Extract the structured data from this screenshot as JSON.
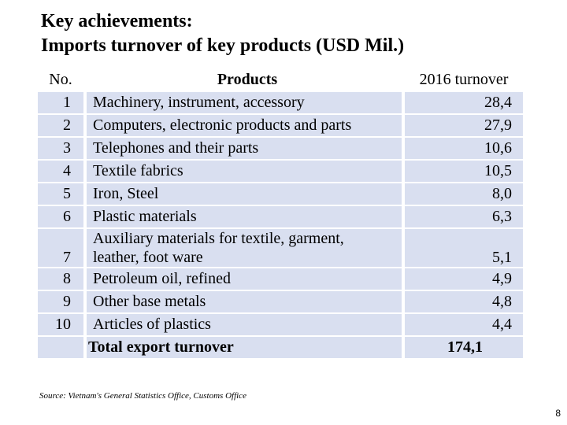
{
  "title": {
    "line1": "Key achievements:",
    "line2": "Imports turnover of key products (USD Mil.)"
  },
  "table": {
    "headers": {
      "no": "No.",
      "product": "Products",
      "value": "2016 turnover"
    },
    "rows": [
      {
        "no": "1",
        "product": "Machinery, instrument, accessory",
        "value": "28,4"
      },
      {
        "no": "2",
        "product": "Computers, electronic products and parts",
        "value": "27,9"
      },
      {
        "no": "3",
        "product": "Telephones and their parts",
        "value": "10,6"
      },
      {
        "no": "4",
        "product": "Textile fabrics",
        "value": "10,5"
      },
      {
        "no": "5",
        "product": "Iron, Steel",
        "value": "8,0"
      },
      {
        "no": "6",
        "product": "Plastic materials",
        "value": "6,3"
      },
      {
        "no": "7",
        "product_line1": "Auxiliary materials for textile, garment,",
        "product_line2": "leather, foot ware",
        "value": "5,1"
      },
      {
        "no": "8",
        "product": "Petroleum oil, refined",
        "value": "4,9"
      },
      {
        "no": "9",
        "product": "Other base metals",
        "value": "4,8"
      },
      {
        "no": "10",
        "product": "Articles of plastics",
        "value": "4,4"
      }
    ],
    "total": {
      "label": "Total export turnover",
      "value": "174,1"
    }
  },
  "source_text": "Source: Vietnam's General Statistics Office, Customs Office",
  "page_number": "8",
  "colors": {
    "row_fill": "#d9dff0",
    "background": "#ffffff",
    "text": "#000000"
  }
}
